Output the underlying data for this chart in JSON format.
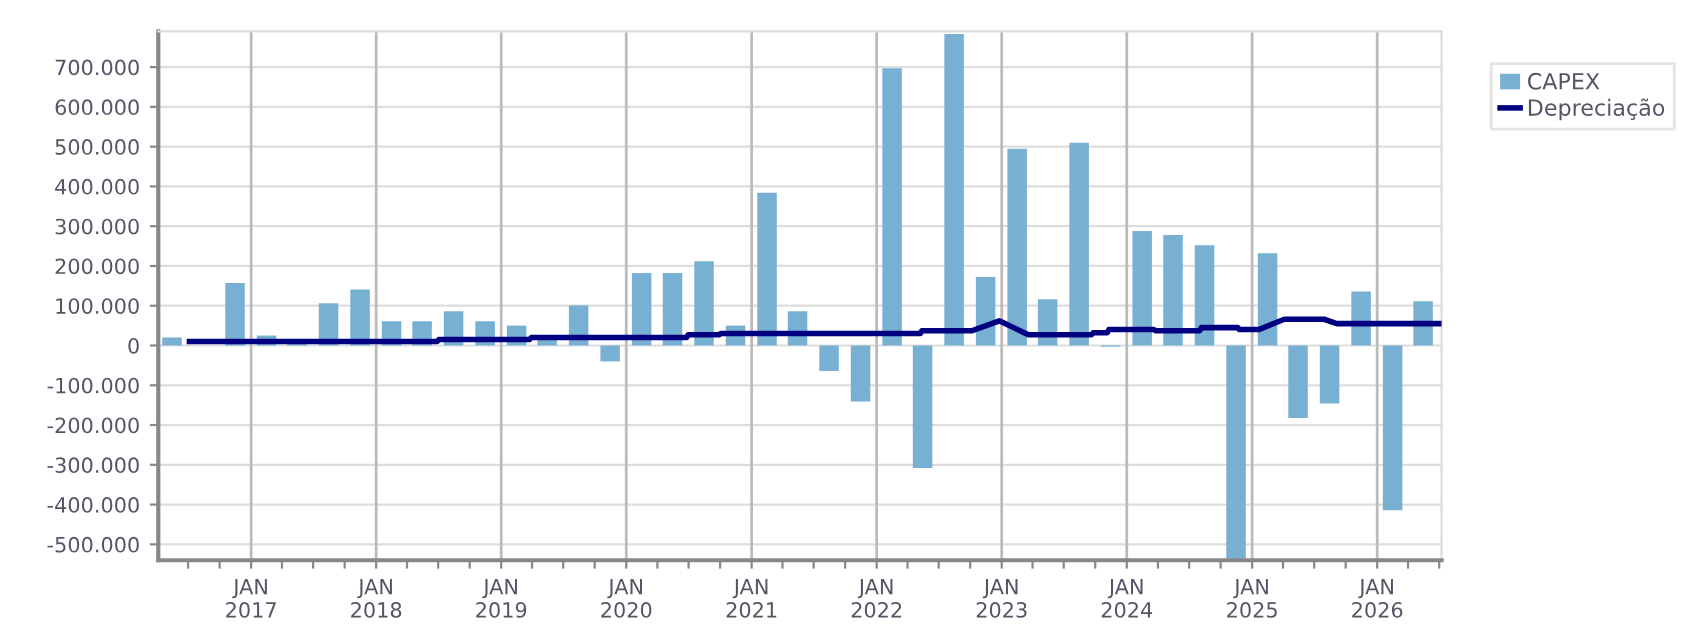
{
  "chart_data": {
    "type": "bar",
    "x": [
      "2016-05-15",
      "2016-08-15",
      "2016-11-15",
      "2017-02-15",
      "2017-05-15",
      "2017-08-15",
      "2017-11-15",
      "2018-02-15",
      "2018-05-15",
      "2018-08-15",
      "2018-11-15",
      "2019-02-15",
      "2019-05-15",
      "2019-08-15",
      "2019-11-15",
      "2020-02-15",
      "2020-05-15",
      "2020-08-15",
      "2020-11-15",
      "2021-02-15",
      "2021-05-15",
      "2021-08-15",
      "2021-11-15",
      "2022-02-15",
      "2022-05-15",
      "2022-08-15",
      "2022-11-15",
      "2023-02-15",
      "2023-05-15",
      "2023-08-15",
      "2023-11-15",
      "2024-02-15",
      "2024-05-15",
      "2024-08-15",
      "2024-11-15",
      "2025-02-15",
      "2025-05-15",
      "2025-08-15",
      "2025-11-15",
      "2026-02-15",
      "2026-05-15"
    ],
    "series": [
      {
        "name": "CAPEX",
        "color": "#78b0d3",
        "values": [
          20000,
          null,
          157000,
          25000,
          10000,
          106000,
          141000,
          61000,
          61000,
          86000,
          61000,
          50000,
          20000,
          101000,
          -40000,
          182000,
          182000,
          212000,
          50000,
          384000,
          86000,
          -64000,
          -141000,
          697000,
          -308000,
          783000,
          172000,
          495000,
          116000,
          510000,
          -3000,
          288000,
          278000,
          252000,
          -540000,
          232000,
          -182000,
          -146000,
          136000,
          -414000,
          111000
        ]
      },
      {
        "name": "Depreciação",
        "type": "line",
        "color": "#000080",
        "x": [
          "2016-07-05",
          "2018-06-28",
          "2018-07-03",
          "2019-03-25",
          "2019-03-30",
          "2020-06-25",
          "2020-06-30",
          "2020-09-28",
          "2020-10-03",
          "2022-05-08",
          "2022-05-13",
          "2022-10-05",
          "2022-12-25",
          "2023-03-20",
          "2023-09-20",
          "2023-09-25",
          "2023-11-05",
          "2023-11-10",
          "2024-03-20",
          "2024-03-25",
          "2024-08-01",
          "2024-08-06",
          "2024-11-20",
          "2024-11-25",
          "2025-01-20",
          "2025-04-05",
          "2025-07-30",
          "2025-09-05",
          "2026-07-08"
        ],
        "values": [
          10000,
          10000,
          15000,
          15000,
          20000,
          20000,
          27000,
          27000,
          30000,
          30000,
          37000,
          37000,
          62000,
          27000,
          27000,
          32000,
          32000,
          40000,
          40000,
          37000,
          37000,
          45000,
          45000,
          40000,
          40000,
          66000,
          66000,
          55000,
          55000
        ]
      }
    ],
    "xlim": [
      "2016-04-05",
      "2026-07-08"
    ],
    "xticks": [
      {
        "value": "2016-07-01",
        "label": null
      },
      {
        "value": "2016-10-01",
        "label": null
      },
      {
        "value": "2017-01-01",
        "label": "JAN\n2017"
      },
      {
        "value": "2017-04-01",
        "label": null
      },
      {
        "value": "2017-07-01",
        "label": null
      },
      {
        "value": "2017-10-01",
        "label": null
      },
      {
        "value": "2018-01-01",
        "label": "JAN\n2018"
      },
      {
        "value": "2018-04-01",
        "label": null
      },
      {
        "value": "2018-07-01",
        "label": null
      },
      {
        "value": "2018-10-01",
        "label": null
      },
      {
        "value": "2019-01-01",
        "label": "JAN\n2019"
      },
      {
        "value": "2019-04-01",
        "label": null
      },
      {
        "value": "2019-07-01",
        "label": null
      },
      {
        "value": "2019-10-01",
        "label": null
      },
      {
        "value": "2020-01-01",
        "label": "JAN\n2020"
      },
      {
        "value": "2020-04-01",
        "label": null
      },
      {
        "value": "2020-07-01",
        "label": null
      },
      {
        "value": "2020-10-01",
        "label": null
      },
      {
        "value": "2021-01-01",
        "label": "JAN\n2021"
      },
      {
        "value": "2021-04-01",
        "label": null
      },
      {
        "value": "2021-07-01",
        "label": null
      },
      {
        "value": "2021-10-01",
        "label": null
      },
      {
        "value": "2022-01-01",
        "label": "JAN\n2022"
      },
      {
        "value": "2022-04-01",
        "label": null
      },
      {
        "value": "2022-07-01",
        "label": null
      },
      {
        "value": "2022-10-01",
        "label": null
      },
      {
        "value": "2023-01-01",
        "label": "JAN\n2023"
      },
      {
        "value": "2023-04-01",
        "label": null
      },
      {
        "value": "2023-07-01",
        "label": null
      },
      {
        "value": "2023-10-01",
        "label": null
      },
      {
        "value": "2024-01-01",
        "label": "JAN\n2024"
      },
      {
        "value": "2024-04-01",
        "label": null
      },
      {
        "value": "2024-07-01",
        "label": null
      },
      {
        "value": "2024-10-01",
        "label": null
      },
      {
        "value": "2025-01-01",
        "label": "JAN\n2025"
      },
      {
        "value": "2025-04-01",
        "label": null
      },
      {
        "value": "2025-07-01",
        "label": null
      },
      {
        "value": "2025-10-01",
        "label": null
      },
      {
        "value": "2026-01-01",
        "label": "JAN\n2026"
      },
      {
        "value": "2026-04-01",
        "label": null
      },
      {
        "value": "2026-07-01",
        "label": null
      }
    ],
    "ylim": [
      -540000,
      790000
    ],
    "yticks": [
      {
        "value": -500000,
        "label": "-500.000"
      },
      {
        "value": -400000,
        "label": "-400.000"
      },
      {
        "value": -300000,
        "label": "-300.000"
      },
      {
        "value": -200000,
        "label": "-200.000"
      },
      {
        "value": -100000,
        "label": "-100.000"
      },
      0,
      {
        "value": 100000,
        "label": "100.000"
      },
      {
        "value": 200000,
        "label": "200.000"
      },
      {
        "value": 300000,
        "label": "300.000"
      },
      {
        "value": 400000,
        "label": "400.000"
      },
      {
        "value": 500000,
        "label": "500.000"
      },
      {
        "value": 600000,
        "label": "600.000"
      },
      {
        "value": 700000,
        "label": "700.000"
      }
    ],
    "grid": true,
    "legend": "top right"
  }
}
